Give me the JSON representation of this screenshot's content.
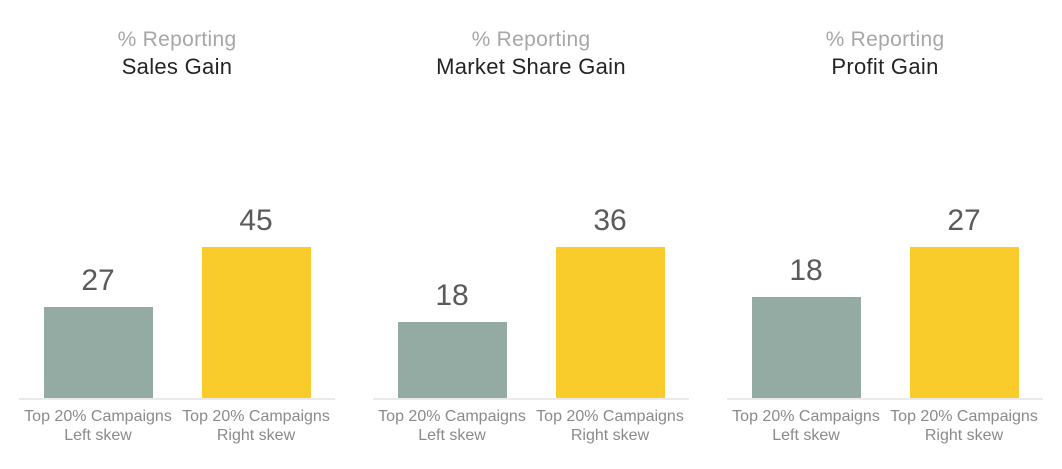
{
  "style": {
    "sage_bar_color": "#94ABA3",
    "yellow_bar_color": "#F9CC2B",
    "value_label_color": "#5A5A5A",
    "title_sub_color": "#A7A7A7",
    "title_main_color": "#242424",
    "category_label_color": "#8A8A8A",
    "baseline_color": "#EAEAEA",
    "background": "#FFFFFF"
  },
  "chart_data": [
    {
      "type": "bar",
      "title_line1": "% Reporting",
      "title_line2": "Sales Gain",
      "categories": [
        "Top 20% Campaigns Left skew",
        "Top 20% Campaigns Right skew"
      ],
      "category_lines": [
        [
          "Top 20% Campaigns",
          "Left skew"
        ],
        [
          "Top 20% Campaigns",
          "Right skew"
        ]
      ],
      "values": [
        27,
        45
      ],
      "bar_colors": [
        "#94ABA3",
        "#F9CC2B"
      ],
      "ylim": [
        0,
        45
      ],
      "grid": false,
      "value_labels_shown": true,
      "legend": "none"
    },
    {
      "type": "bar",
      "title_line1": "% Reporting",
      "title_line2": "Market Share Gain",
      "categories": [
        "Top 20% Campaigns Left skew",
        "Top 20% Campaigns Right skew"
      ],
      "category_lines": [
        [
          "Top 20% Campaigns",
          "Left skew"
        ],
        [
          "Top 20% Campaigns",
          "Right skew"
        ]
      ],
      "values": [
        18,
        36
      ],
      "bar_colors": [
        "#94ABA3",
        "#F9CC2B"
      ],
      "ylim": [
        0,
        36
      ],
      "grid": false,
      "value_labels_shown": true,
      "legend": "none"
    },
    {
      "type": "bar",
      "title_line1": "% Reporting",
      "title_line2": "Profit Gain",
      "categories": [
        "Top 20% Campaigns Left skew",
        "Top 20% Campaigns Right skew"
      ],
      "category_lines": [
        [
          "Top 20% Campaigns",
          "Left skew"
        ],
        [
          "Top 20% Campaigns",
          "Right skew"
        ]
      ],
      "values": [
        18,
        27
      ],
      "bar_colors": [
        "#94ABA3",
        "#F9CC2B"
      ],
      "ylim": [
        0,
        27
      ],
      "grid": false,
      "value_labels_shown": true,
      "legend": "none"
    }
  ]
}
